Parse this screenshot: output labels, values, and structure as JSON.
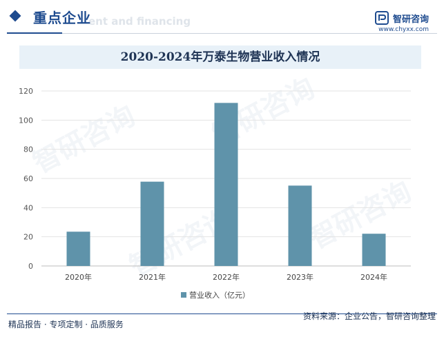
{
  "header": {
    "section_title": "重点企业",
    "section_subtitle": "ent and financing",
    "brand_name": "智研咨询",
    "brand_url": "www.chyxx.com"
  },
  "footer": {
    "left": "精品报告 · 专项定制 · 品质服务",
    "source": "资料来源：企业公告，智研咨询整理"
  },
  "watermark": "智研咨询",
  "colors": {
    "brand": "#1e4b8f",
    "bar": "#5f93aa",
    "title_band": "#e8f1f8"
  },
  "chart_data": {
    "type": "bar",
    "title": "2020-2024年万泰生物营业收入情况",
    "categories": [
      "2020年",
      "2021年",
      "2022年",
      "2023年",
      "2024年"
    ],
    "series": [
      {
        "name": "营业收入（亿元）",
        "values": [
          23.5,
          57.8,
          111.8,
          55.1,
          22.1
        ]
      }
    ],
    "ylim": [
      0,
      120
    ],
    "yticks": [
      0,
      20,
      40,
      60,
      80,
      100,
      120
    ],
    "grid": true,
    "legend": "bottom"
  }
}
